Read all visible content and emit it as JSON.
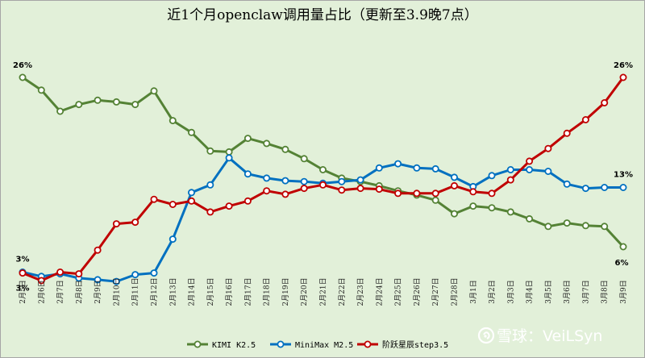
{
  "chart_data": {
    "type": "line",
    "title": "近1个月openclaw调用量占比（更新至3.9晚7点）",
    "xlabel": "",
    "ylabel": "",
    "ylim": [
      0,
      28
    ],
    "grid": false,
    "legend_position": "bottom",
    "categories": [
      "2月5日",
      "2月6日",
      "2月7日",
      "2月8日",
      "2月9日",
      "2月10日",
      "2月11日",
      "2月12日",
      "2月13日",
      "2月14日",
      "2月15日",
      "2月16日",
      "2月17日",
      "2月18日",
      "2月19日",
      "2月20日",
      "2月21日",
      "2月22日",
      "2月23日",
      "2月24日",
      "2月25日",
      "2月26日",
      "2月27日",
      "2月28日",
      "3月1日",
      "3月2日",
      "3月3日",
      "3月4日",
      "3月5日",
      "3月6日",
      "3月7日",
      "3月8日",
      "3月9日"
    ],
    "series": [
      {
        "name": "KIMI K2.5",
        "color": "#548235",
        "values": [
          26,
          24.5,
          22,
          22.8,
          23.3,
          23.1,
          22.8,
          24.4,
          20.9,
          19.5,
          17.3,
          17.2,
          18.8,
          18.2,
          17.5,
          16.4,
          15.1,
          14.1,
          13.7,
          13.2,
          12.6,
          12.1,
          11.5,
          9.9,
          10.8,
          10.6,
          10.1,
          9.3,
          8.4,
          8.8,
          8.5,
          8.4,
          6.0
        ]
      },
      {
        "name": "MiniMax M2.5",
        "color": "#0070c0",
        "values": [
          3,
          2.5,
          2.8,
          2.3,
          2.1,
          1.9,
          2.7,
          2.9,
          6.9,
          12.4,
          13.3,
          16.5,
          14.6,
          14.1,
          13.8,
          13.7,
          13.5,
          13.7,
          13.9,
          15.3,
          15.8,
          15.3,
          15.2,
          14.2,
          13.1,
          14.4,
          15.1,
          15.1,
          14.9,
          13.4,
          12.9,
          13.0,
          13.0
        ]
      },
      {
        "name": "阶跃星辰step3.5",
        "color": "#c00000",
        "values": [
          2.9,
          2.0,
          3.0,
          2.8,
          5.6,
          8.7,
          8.9,
          11.6,
          11.0,
          11.4,
          10.1,
          10.8,
          11.4,
          12.6,
          12.2,
          12.9,
          13.3,
          12.7,
          12.9,
          12.8,
          12.3,
          12.3,
          12.3,
          13.2,
          12.5,
          12.3,
          13.9,
          16.1,
          17.6,
          19.4,
          21.0,
          23.0,
          26.0
        ]
      }
    ],
    "data_labels": [
      {
        "series": 0,
        "index": 0,
        "text": "26%"
      },
      {
        "series": 1,
        "index": 0,
        "text": "3%"
      },
      {
        "series": 2,
        "index": 0,
        "text": "3%"
      },
      {
        "series": 0,
        "index": 32,
        "text": "6%"
      },
      {
        "series": 1,
        "index": 32,
        "text": "13%"
      },
      {
        "series": 2,
        "index": 32,
        "text": "26%"
      }
    ]
  },
  "watermark": {
    "icon": "snowball-logo-icon",
    "text": "雪球：VeiLSyn"
  }
}
